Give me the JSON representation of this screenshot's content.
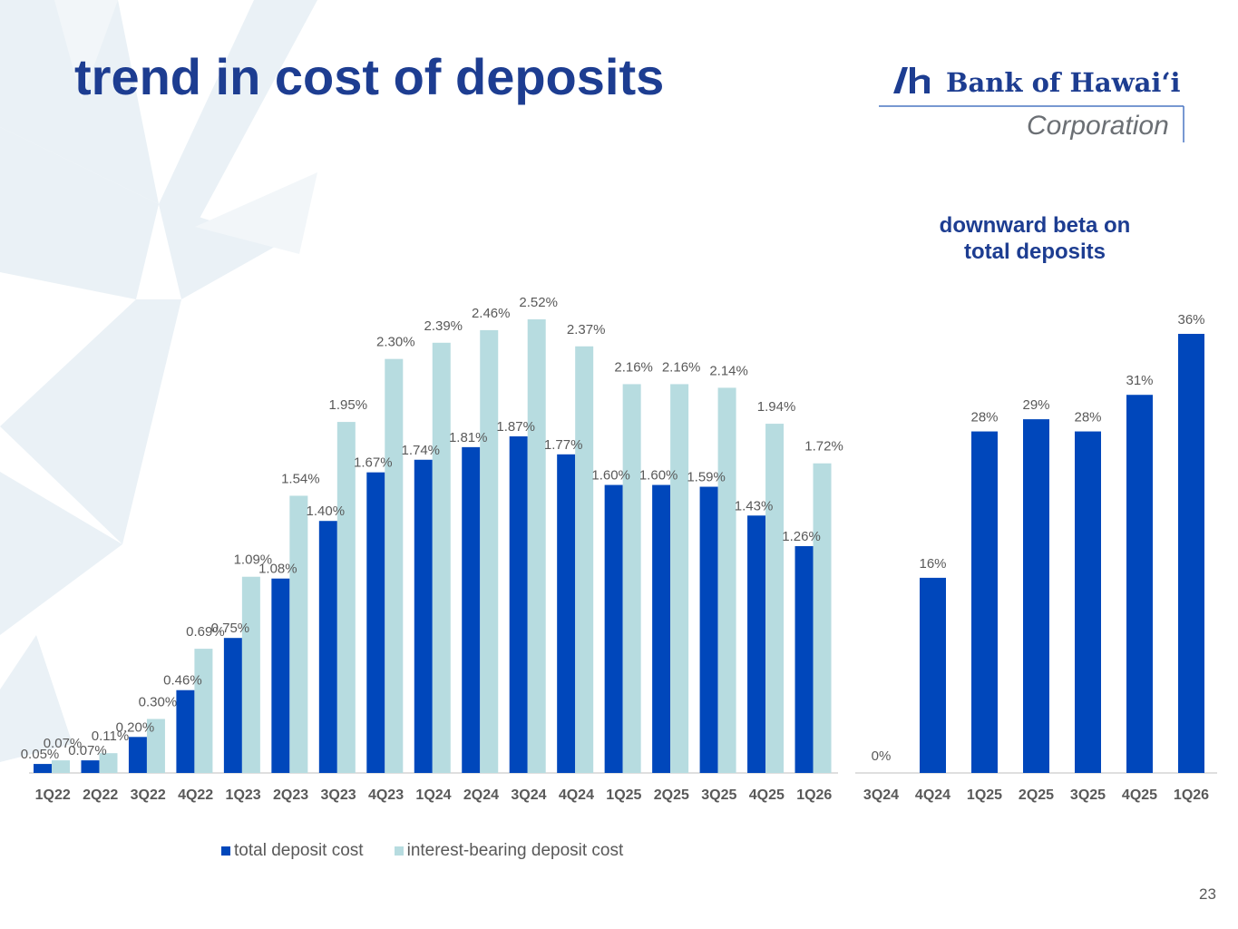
{
  "title": "trend in cost of deposits",
  "logo": {
    "name": "Bank of Hawaiʻi",
    "sub": "Corporation",
    "icon": "bank-of-hawaii-mark-icon"
  },
  "subtitle_lines": [
    "downward beta on",
    "total deposits"
  ],
  "page_number": "23",
  "colors": {
    "primary": "#0047bb",
    "secondary": "#b7dce0",
    "title": "#1d3d91",
    "axis": "#595959"
  },
  "legend": {
    "series1": "total deposit cost",
    "series2": "interest-bearing deposit cost"
  },
  "chart_data": [
    {
      "type": "bar",
      "title": "trend in cost of deposits",
      "categories": [
        "1Q22",
        "2Q22",
        "3Q22",
        "4Q22",
        "1Q23",
        "2Q23",
        "3Q23",
        "4Q23",
        "1Q24",
        "2Q24",
        "3Q24",
        "4Q24",
        "1Q25",
        "2Q25",
        "3Q25",
        "4Q25",
        "1Q26"
      ],
      "series": [
        {
          "name": "total deposit cost",
          "values": [
            0.05,
            0.07,
            0.2,
            0.46,
            0.75,
            1.08,
            1.4,
            1.67,
            1.74,
            1.81,
            1.87,
            1.77,
            1.6,
            1.6,
            1.59,
            1.43,
            1.26
          ],
          "labels": [
            "0.05%",
            "0.07%",
            "0.20%",
            "0.46%",
            "0.75%",
            "1.08%",
            "1.40%",
            "1.67%",
            "1.74%",
            "1.81%",
            "1.87%",
            "1.77%",
            "1.60%",
            "1.60%",
            "1.59%",
            "1.43%",
            "1.26%"
          ]
        },
        {
          "name": "interest-bearing deposit cost",
          "values": [
            0.07,
            0.11,
            0.3,
            0.69,
            1.09,
            1.54,
            1.95,
            2.3,
            2.39,
            2.46,
            2.52,
            2.37,
            2.16,
            2.16,
            2.14,
            1.94,
            1.72
          ],
          "labels": [
            "0.07%",
            "0.11%",
            "0.30%",
            "0.69%",
            "1.09%",
            "1.54%",
            "1.95%",
            "2.30%",
            "2.39%",
            "2.46%",
            "2.52%",
            "2.37%",
            "2.16%",
            "2.16%",
            "2.14%",
            "1.94%",
            "1.72%"
          ]
        }
      ],
      "ylim": [
        0,
        2.52
      ],
      "xlabel": "",
      "ylabel": "",
      "legend": "bottom"
    },
    {
      "type": "bar",
      "title": "downward beta on total deposits",
      "categories": [
        "3Q24",
        "4Q24",
        "1Q25",
        "2Q25",
        "3Q25",
        "4Q25",
        "1Q26"
      ],
      "values": [
        0,
        16,
        28,
        29,
        28,
        31,
        36
      ],
      "labels": [
        "0%",
        "16%",
        "28%",
        "29%",
        "28%",
        "31%",
        "36%"
      ],
      "ylim": [
        0,
        36
      ],
      "xlabel": "",
      "ylabel": ""
    }
  ]
}
